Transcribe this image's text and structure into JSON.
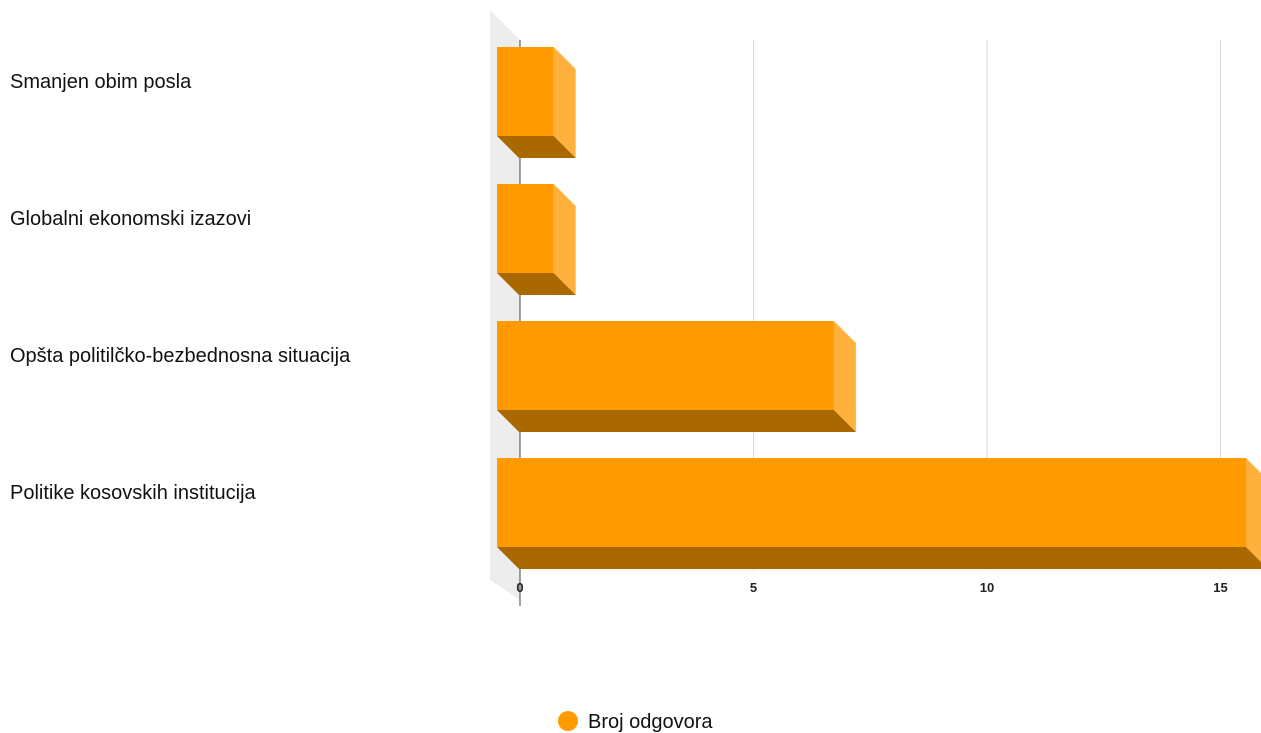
{
  "chart_data": {
    "type": "bar",
    "orientation": "horizontal",
    "style": "3d",
    "title": "",
    "xlabel": "",
    "ylabel": "",
    "categories": [
      "Smanjen obim posla",
      "Globalni ekonomski izazovi",
      "Opšta politilčko-bezbednosna situacija",
      "Politike kosovskih institucija"
    ],
    "series": [
      {
        "name": "Broj odgovora",
        "values": [
          1,
          1,
          7,
          16
        ],
        "color": "#FF9B00"
      }
    ],
    "xlim": [
      0,
      15.5
    ],
    "xticks": [
      "0",
      "5",
      "10",
      "15"
    ],
    "tick_values": [
      0,
      5,
      10,
      15
    ],
    "grid": true,
    "legend_position": "bottom-center",
    "colors": {
      "bar_front": "#FF9B00",
      "bar_side": "#FFB13D",
      "bar_bottom": "#A96900",
      "grid": "#D9D9D9",
      "axis": "#444444",
      "wall": "#EDEDED"
    }
  }
}
